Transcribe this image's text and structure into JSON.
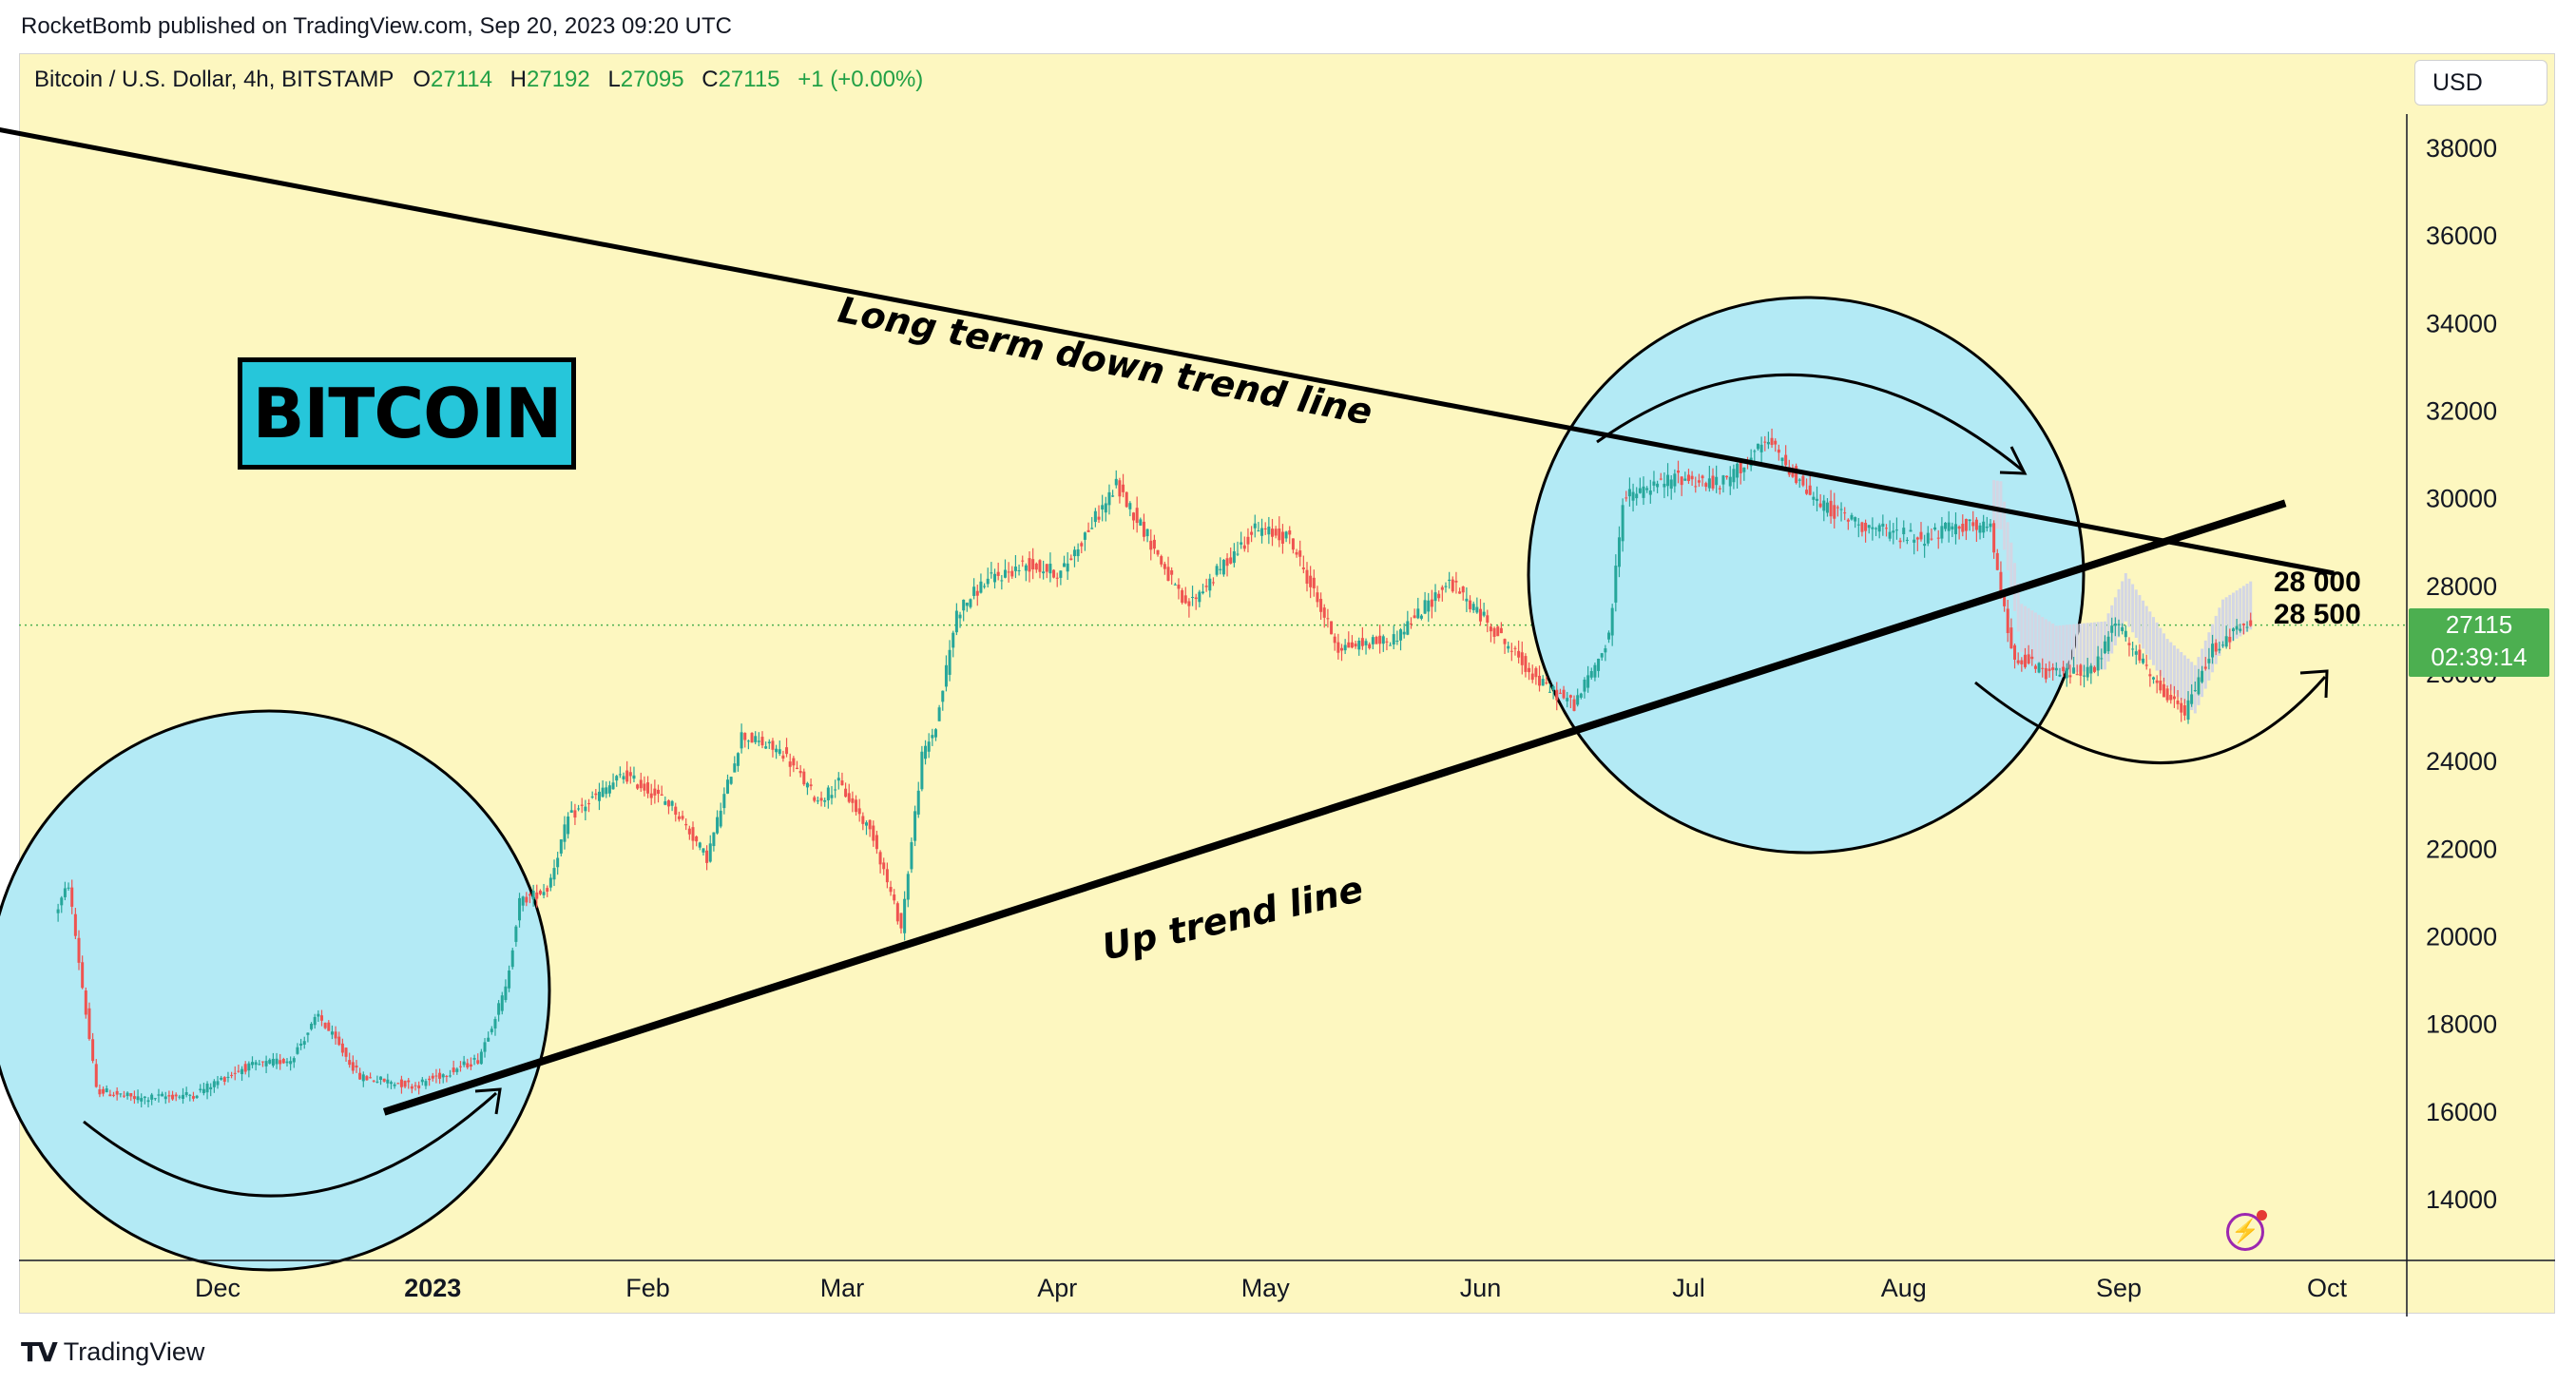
{
  "publication": {
    "text": "RocketBomb published on TradingView.com, Sep 20, 2023 09:20 UTC"
  },
  "legend": {
    "symbol": "Bitcoin / U.S. Dollar, 4h, BITSTAMP",
    "o_label": "O",
    "o": "27114",
    "h_label": "H",
    "h": "27192",
    "l_label": "L",
    "l": "27095",
    "c_label": "C",
    "c": "27115",
    "change": "+1 (+0.00%)"
  },
  "currency_button": "USD",
  "price_badge": {
    "price": "27115",
    "countdown": "02:39:14",
    "color": "#4caf50"
  },
  "annotations": {
    "title_box": "BITCOIN",
    "down_trend": "Long term down trend line",
    "up_trend": "Up trend line",
    "target_1": "28 000",
    "target_2": "28 500"
  },
  "footer": {
    "logo": "TV",
    "brand": "TradingView"
  },
  "colors": {
    "background": "#fdf7c0",
    "up_candle": "#26a69a",
    "down_candle": "#ef5350",
    "circle_fill": "#b3eaf5",
    "projection": "#d3d6e4"
  },
  "chart_data": {
    "type": "line",
    "title": "Bitcoin / U.S. Dollar, 4h, BITSTAMP",
    "xlabel": "",
    "ylabel": "",
    "ylim": [
      12000,
      39000
    ],
    "x_ticks": [
      "Dec",
      "2023",
      "Feb",
      "Mar",
      "Apr",
      "May",
      "Jun",
      "Jul",
      "Aug",
      "Sep",
      "Oct"
    ],
    "y_ticks": [
      14000,
      16000,
      18000,
      20000,
      22000,
      24000,
      26000,
      28000,
      30000,
      32000,
      34000,
      36000,
      38000
    ],
    "series": [
      {
        "x": [
          "2022-11-08",
          "2022-11-10",
          "2022-11-14",
          "2022-11-20",
          "2022-11-28",
          "2022-12-05",
          "2022-12-12",
          "2022-12-16",
          "2022-12-22",
          "2022-12-30",
          "2023-01-08",
          "2023-01-12",
          "2023-01-14",
          "2023-01-18",
          "2023-01-21",
          "2023-01-29",
          "2023-02-05",
          "2023-02-10",
          "2023-02-15",
          "2023-02-21",
          "2023-02-26",
          "2023-03-01",
          "2023-03-06",
          "2023-03-10",
          "2023-03-13",
          "2023-03-15",
          "2023-03-18",
          "2023-03-22",
          "2023-03-28",
          "2023-04-02",
          "2023-04-10",
          "2023-04-14",
          "2023-04-20",
          "2023-04-25",
          "2023-04-30",
          "2023-05-05",
          "2023-05-12",
          "2023-05-20",
          "2023-05-28",
          "2023-06-03",
          "2023-06-10",
          "2023-06-15",
          "2023-06-20",
          "2023-06-22",
          "2023-06-30",
          "2023-07-06",
          "2023-07-13",
          "2023-07-20",
          "2023-07-28",
          "2023-08-04",
          "2023-08-10",
          "2023-08-14",
          "2023-08-17",
          "2023-08-22",
          "2023-08-29",
          "2023-09-01",
          "2023-09-07",
          "2023-09-11",
          "2023-09-15",
          "2023-09-20"
        ],
        "values": [
          20500,
          21200,
          16500,
          16300,
          16400,
          17000,
          17200,
          18200,
          16800,
          16600,
          17200,
          18800,
          20800,
          21100,
          22700,
          23700,
          23000,
          21800,
          24600,
          24200,
          23100,
          23500,
          22300,
          20200,
          24100,
          24800,
          27400,
          28100,
          28500,
          28300,
          30300,
          29300,
          27500,
          28400,
          29300,
          29100,
          26600,
          26800,
          28100,
          27100,
          25800,
          25300,
          26800,
          30000,
          30500,
          30300,
          31300,
          29900,
          29300,
          29100,
          29400,
          29300,
          26500,
          26000,
          26100,
          27200,
          25700,
          25100,
          26600,
          27115
        ]
      }
    ],
    "annotations": {
      "down_trend_line": {
        "from": [
          "2022-10-28",
          38500
        ],
        "to": [
          "2023-10-02",
          28300
        ]
      },
      "up_trend_line": {
        "from": [
          "2022-12-25",
          16000
        ],
        "to": [
          "2023-09-25",
          29900
        ]
      }
    }
  }
}
